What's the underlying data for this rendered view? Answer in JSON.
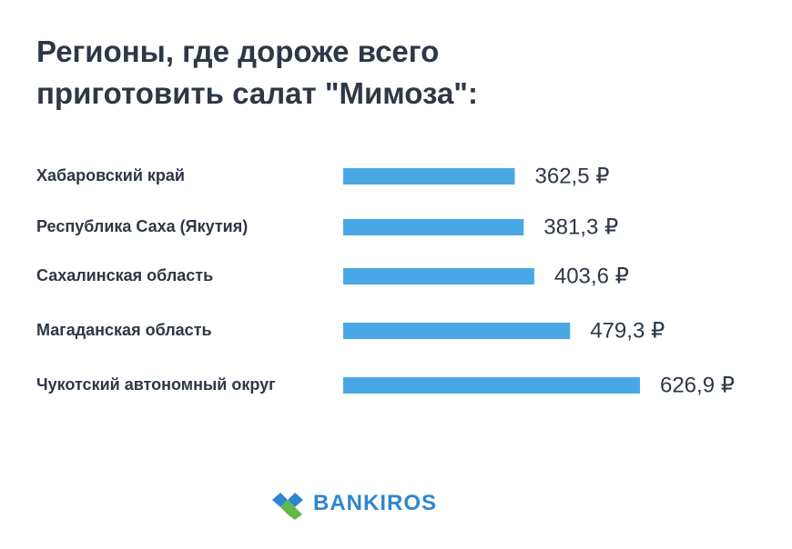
{
  "title_line1": "Регионы, где дороже всего",
  "title_line2": "приготовить салат \"Мимоза\":",
  "brand": "BANKIROS",
  "colors": {
    "bar": "#4aa7e6",
    "label": "#2d3747",
    "value": "#2d3747",
    "logo_blue": "#2f86cf",
    "logo_green": "#62b946"
  },
  "chart_data": {
    "type": "bar",
    "orientation": "horizontal",
    "categories": [
      "Хабаровский край",
      "Республика Саха (Якутия)",
      "Сахалинская область",
      "Магаданская область",
      "Чукотский автономный округ"
    ],
    "values": [
      362.5,
      381.3,
      403.6,
      479.3,
      626.9
    ],
    "value_labels": [
      "362,5 ₽",
      "381,3 ₽",
      "403,6 ₽",
      "479,3 ₽",
      "626,9 ₽"
    ],
    "title": "Регионы, где дороже всего приготовить салат \"Мимоза\":",
    "grid": false,
    "legend": "none"
  }
}
